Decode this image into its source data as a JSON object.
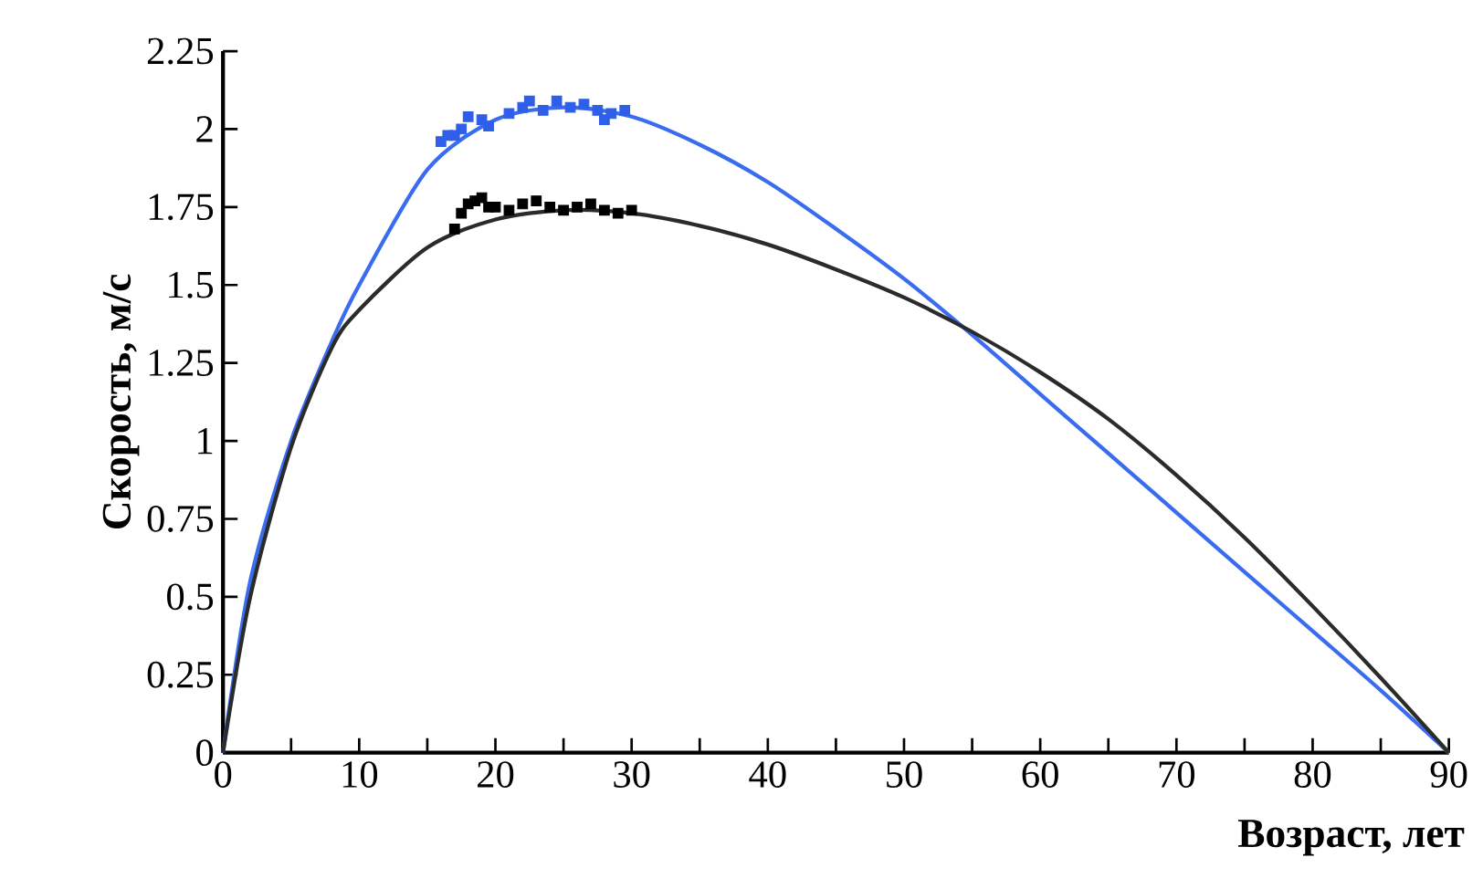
{
  "chart_data": {
    "type": "line",
    "xlabel": "Возраст, лет",
    "ylabel": "Скорость, м/с",
    "xlim": [
      0,
      90
    ],
    "ylim": [
      0,
      2.25
    ],
    "xticks": [
      0,
      10,
      20,
      30,
      40,
      50,
      60,
      70,
      80,
      90
    ],
    "yticks": [
      0,
      0.25,
      0.5,
      0.75,
      1,
      1.25,
      1.5,
      1.75,
      2,
      2.25
    ],
    "grid": false,
    "series": [
      {
        "color": "#3a6cf0",
        "marker": "none",
        "x": [
          0,
          2,
          5,
          8,
          10,
          15,
          20,
          25,
          30,
          35,
          40,
          45,
          50,
          55,
          60,
          65,
          70,
          75,
          80,
          85,
          90
        ],
        "values": [
          0,
          0.55,
          1.0,
          1.32,
          1.5,
          1.87,
          2.03,
          2.07,
          2.04,
          1.95,
          1.83,
          1.68,
          1.52,
          1.34,
          1.15,
          0.96,
          0.77,
          0.58,
          0.39,
          0.2,
          0
        ]
      },
      {
        "color": "#2b2b2b",
        "marker": "none",
        "x": [
          0,
          2,
          5,
          8,
          10,
          15,
          20,
          25,
          30,
          35,
          40,
          45,
          50,
          55,
          60,
          65,
          70,
          75,
          80,
          85,
          90
        ],
        "values": [
          0,
          0.5,
          0.98,
          1.3,
          1.42,
          1.62,
          1.71,
          1.74,
          1.73,
          1.69,
          1.63,
          1.55,
          1.46,
          1.35,
          1.22,
          1.07,
          0.89,
          0.69,
          0.47,
          0.24,
          0
        ]
      },
      {
        "type": "scatter",
        "color": "#2f5fe8",
        "marker": "square",
        "x": [
          16,
          16.5,
          17,
          17.5,
          18,
          19,
          19.5,
          21,
          22,
          22.5,
          23.5,
          24.5,
          25.5,
          26.5,
          27.5,
          28,
          28.5,
          29.5
        ],
        "values": [
          1.96,
          1.98,
          1.98,
          2.0,
          2.04,
          2.03,
          2.01,
          2.05,
          2.07,
          2.09,
          2.06,
          2.09,
          2.07,
          2.08,
          2.06,
          2.03,
          2.05,
          2.06
        ]
      },
      {
        "type": "scatter",
        "color": "#000000",
        "marker": "square",
        "x": [
          17,
          17.5,
          18,
          18.5,
          19,
          19.5,
          20,
          21,
          22,
          23,
          24,
          25,
          26,
          27,
          28,
          29,
          30
        ],
        "values": [
          1.68,
          1.73,
          1.76,
          1.77,
          1.78,
          1.75,
          1.75,
          1.74,
          1.76,
          1.77,
          1.75,
          1.74,
          1.75,
          1.76,
          1.74,
          1.73,
          1.74
        ]
      }
    ]
  }
}
